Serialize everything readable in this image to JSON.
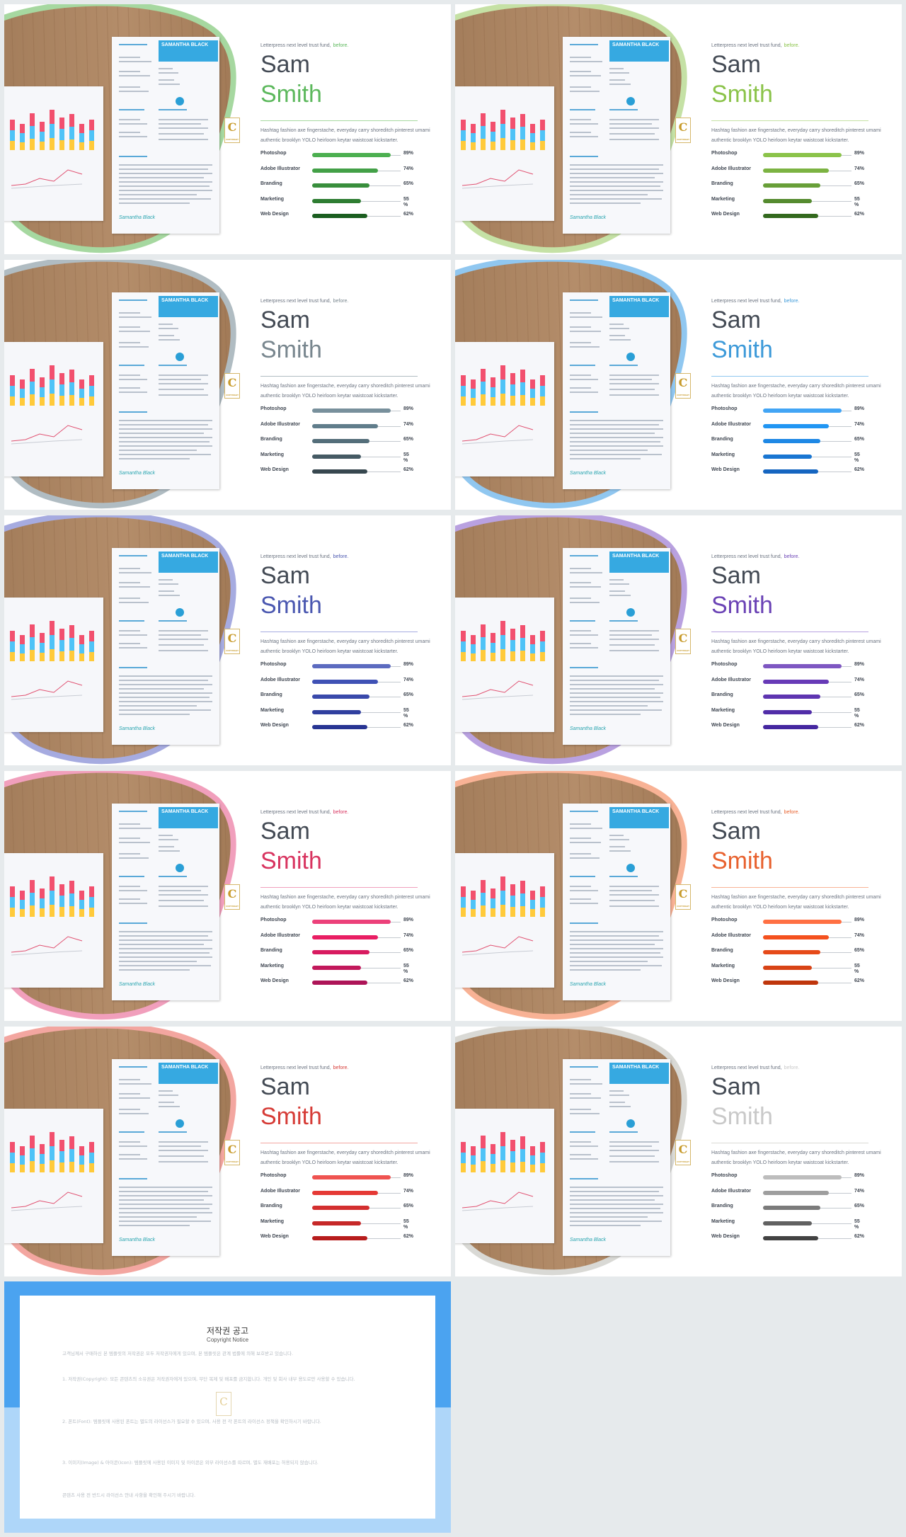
{
  "slide_template": {
    "tagline": "Letterpress next level trust fund,",
    "tagline_accent": "before.",
    "first_name": "Sam",
    "last_name": "Smith",
    "paragraph": "Hashtag fashion axe fingerstache, everyday carry shoreditch pinterest umami authentic brooklyn YOLO heirloom keytar waistcoat kickstarter.",
    "resume_name": "SAMANTHA BLACK",
    "resume_signature": "Samantha Black",
    "badge_letter": "C",
    "badge_caption": "COPYRIGHT",
    "skills": [
      {
        "label": "Photoshop",
        "percent": "89%",
        "value": 89
      },
      {
        "label": "Adobe Illustrator",
        "percent": "74%",
        "value": 74
      },
      {
        "label": "Branding",
        "percent": "65%",
        "value": 65
      },
      {
        "label": "Marketing",
        "percent": "55 %",
        "value": 55
      },
      {
        "label": "Web Design",
        "percent": "62%",
        "value": 62
      }
    ]
  },
  "slides": [
    {
      "theme": "green",
      "accent": "#5cb85c",
      "ring": "#a6d8a0",
      "bars": [
        "#4caf50",
        "#43a047",
        "#388e3c",
        "#2e7d32",
        "#1b5e20"
      ]
    },
    {
      "theme": "lime",
      "accent": "#8bc34a",
      "ring": "#c5e1a5",
      "bars": [
        "#8bc34a",
        "#7cb342",
        "#689f38",
        "#558b2f",
        "#33691e"
      ]
    },
    {
      "theme": "slate",
      "accent": "#78868e",
      "ring": "#b0bcc2",
      "bars": [
        "#78909c",
        "#607d8b",
        "#546e7a",
        "#455a64",
        "#37474f"
      ]
    },
    {
      "theme": "blue",
      "accent": "#3d9ad9",
      "ring": "#90c7f0",
      "bars": [
        "#42a5f5",
        "#2196f3",
        "#1e88e5",
        "#1976d2",
        "#1565c0"
      ]
    },
    {
      "theme": "indigo",
      "accent": "#4a57b0",
      "ring": "#a6abe0",
      "bars": [
        "#5c6bc0",
        "#3f51b5",
        "#3949ab",
        "#303f9f",
        "#283593"
      ]
    },
    {
      "theme": "purple",
      "accent": "#6a42b5",
      "ring": "#b9a1e0",
      "bars": [
        "#7e57c2",
        "#673ab7",
        "#5e35b1",
        "#512da8",
        "#4527a0"
      ]
    },
    {
      "theme": "pink",
      "accent": "#d8335f",
      "ring": "#f19fbc",
      "bars": [
        "#ec407a",
        "#e91e63",
        "#d81b60",
        "#c2185b",
        "#ad1457"
      ]
    },
    {
      "theme": "orange",
      "accent": "#e8612e",
      "ring": "#f8b295",
      "bars": [
        "#ff7043",
        "#f4511e",
        "#e64a19",
        "#d84315",
        "#bf360c"
      ]
    },
    {
      "theme": "red",
      "accent": "#d63b36",
      "ring": "#f3a6a0",
      "bars": [
        "#ef5350",
        "#e53935",
        "#d32f2f",
        "#c62828",
        "#b71c1c"
      ]
    },
    {
      "theme": "gray",
      "accent": "#c9c9c9",
      "ring": "#d9d9d5",
      "bars": [
        "#bdbdbd",
        "#9e9e9e",
        "#7b7b7b",
        "#616161",
        "#424242"
      ]
    }
  ],
  "notice": {
    "title": "저작권 공고",
    "subtitle": "Copyright Notice",
    "badge_letter": "C",
    "paragraphs": [
      "고객님께서 구매하신 본 템플릿의 저작권은 모두 저작권자에게 있으며, 본 템플릿은 관계 법률에 의해 보호받고 있습니다.",
      "1. 저작권(Copyright): 모든 콘텐츠의 소유권은 저작권자에게 있으며, 무단 복제 및 배포를 금지합니다. 개인 및 회사 내부 용도로만 사용할 수 있습니다.",
      "2. 폰트(Font): 템플릿에 사용된 폰트는 별도의 라이선스가 필요할 수 있으며, 사용 전 각 폰트의 라이선스 정책을 확인하시기 바랍니다.",
      "3. 이미지(Image) & 아이콘(Icon): 템플릿에 사용된 이미지 및 아이콘은 외부 라이선스를 따르며, 별도 재배포는 허용되지 않습니다.",
      "콘텐츠 사용 전 반드시 라이선스 안내 사항을 확인해 주시기 바랍니다."
    ]
  }
}
